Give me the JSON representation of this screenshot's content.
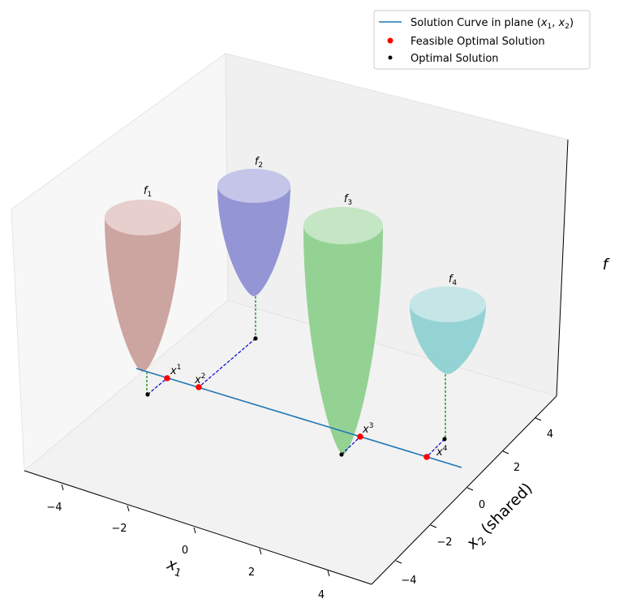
{
  "chart_data": {
    "type": "3d-surface",
    "title": "",
    "xlabel": "x_1",
    "ylabel": "x_2 (shared)",
    "zlabel": "f",
    "xlim": [
      -5,
      5
    ],
    "ylim": [
      -5,
      5
    ],
    "x_ticks": [
      "−4",
      "−2",
      "0",
      "2",
      "4"
    ],
    "y_ticks": [
      "−4",
      "−2",
      "0",
      "2",
      "4"
    ],
    "legend": {
      "placement": "top-right",
      "entries": [
        {
          "label": "Solution Curve in plane (x_1, x_2)",
          "marker": "line",
          "color": "#1f77b4"
        },
        {
          "label": "Feasible Optimal Solution",
          "marker": "dot",
          "color": "#ff0000"
        },
        {
          "label": "Optimal Solution",
          "marker": "dot",
          "color": "#000000"
        }
      ]
    },
    "surfaces": [
      {
        "label": "f_1",
        "color": "#c9a09b",
        "top_color": "#e6cfcc"
      },
      {
        "label": "f_2",
        "color": "#8e8fd3",
        "top_color": "#c4c5e8"
      },
      {
        "label": "f_3",
        "color": "#8ed08e",
        "top_color": "#c4e6c4"
      },
      {
        "label": "f_4",
        "color": "#8ed1d1",
        "top_color": "#c4e6e6"
      }
    ],
    "feasible_points": [
      {
        "label": "x^1",
        "sup": "1"
      },
      {
        "label": "x^2",
        "sup": "2"
      },
      {
        "label": "x^3",
        "sup": "3"
      },
      {
        "label": "x^4",
        "sup": "4"
      }
    ],
    "optimal_points": 4
  }
}
